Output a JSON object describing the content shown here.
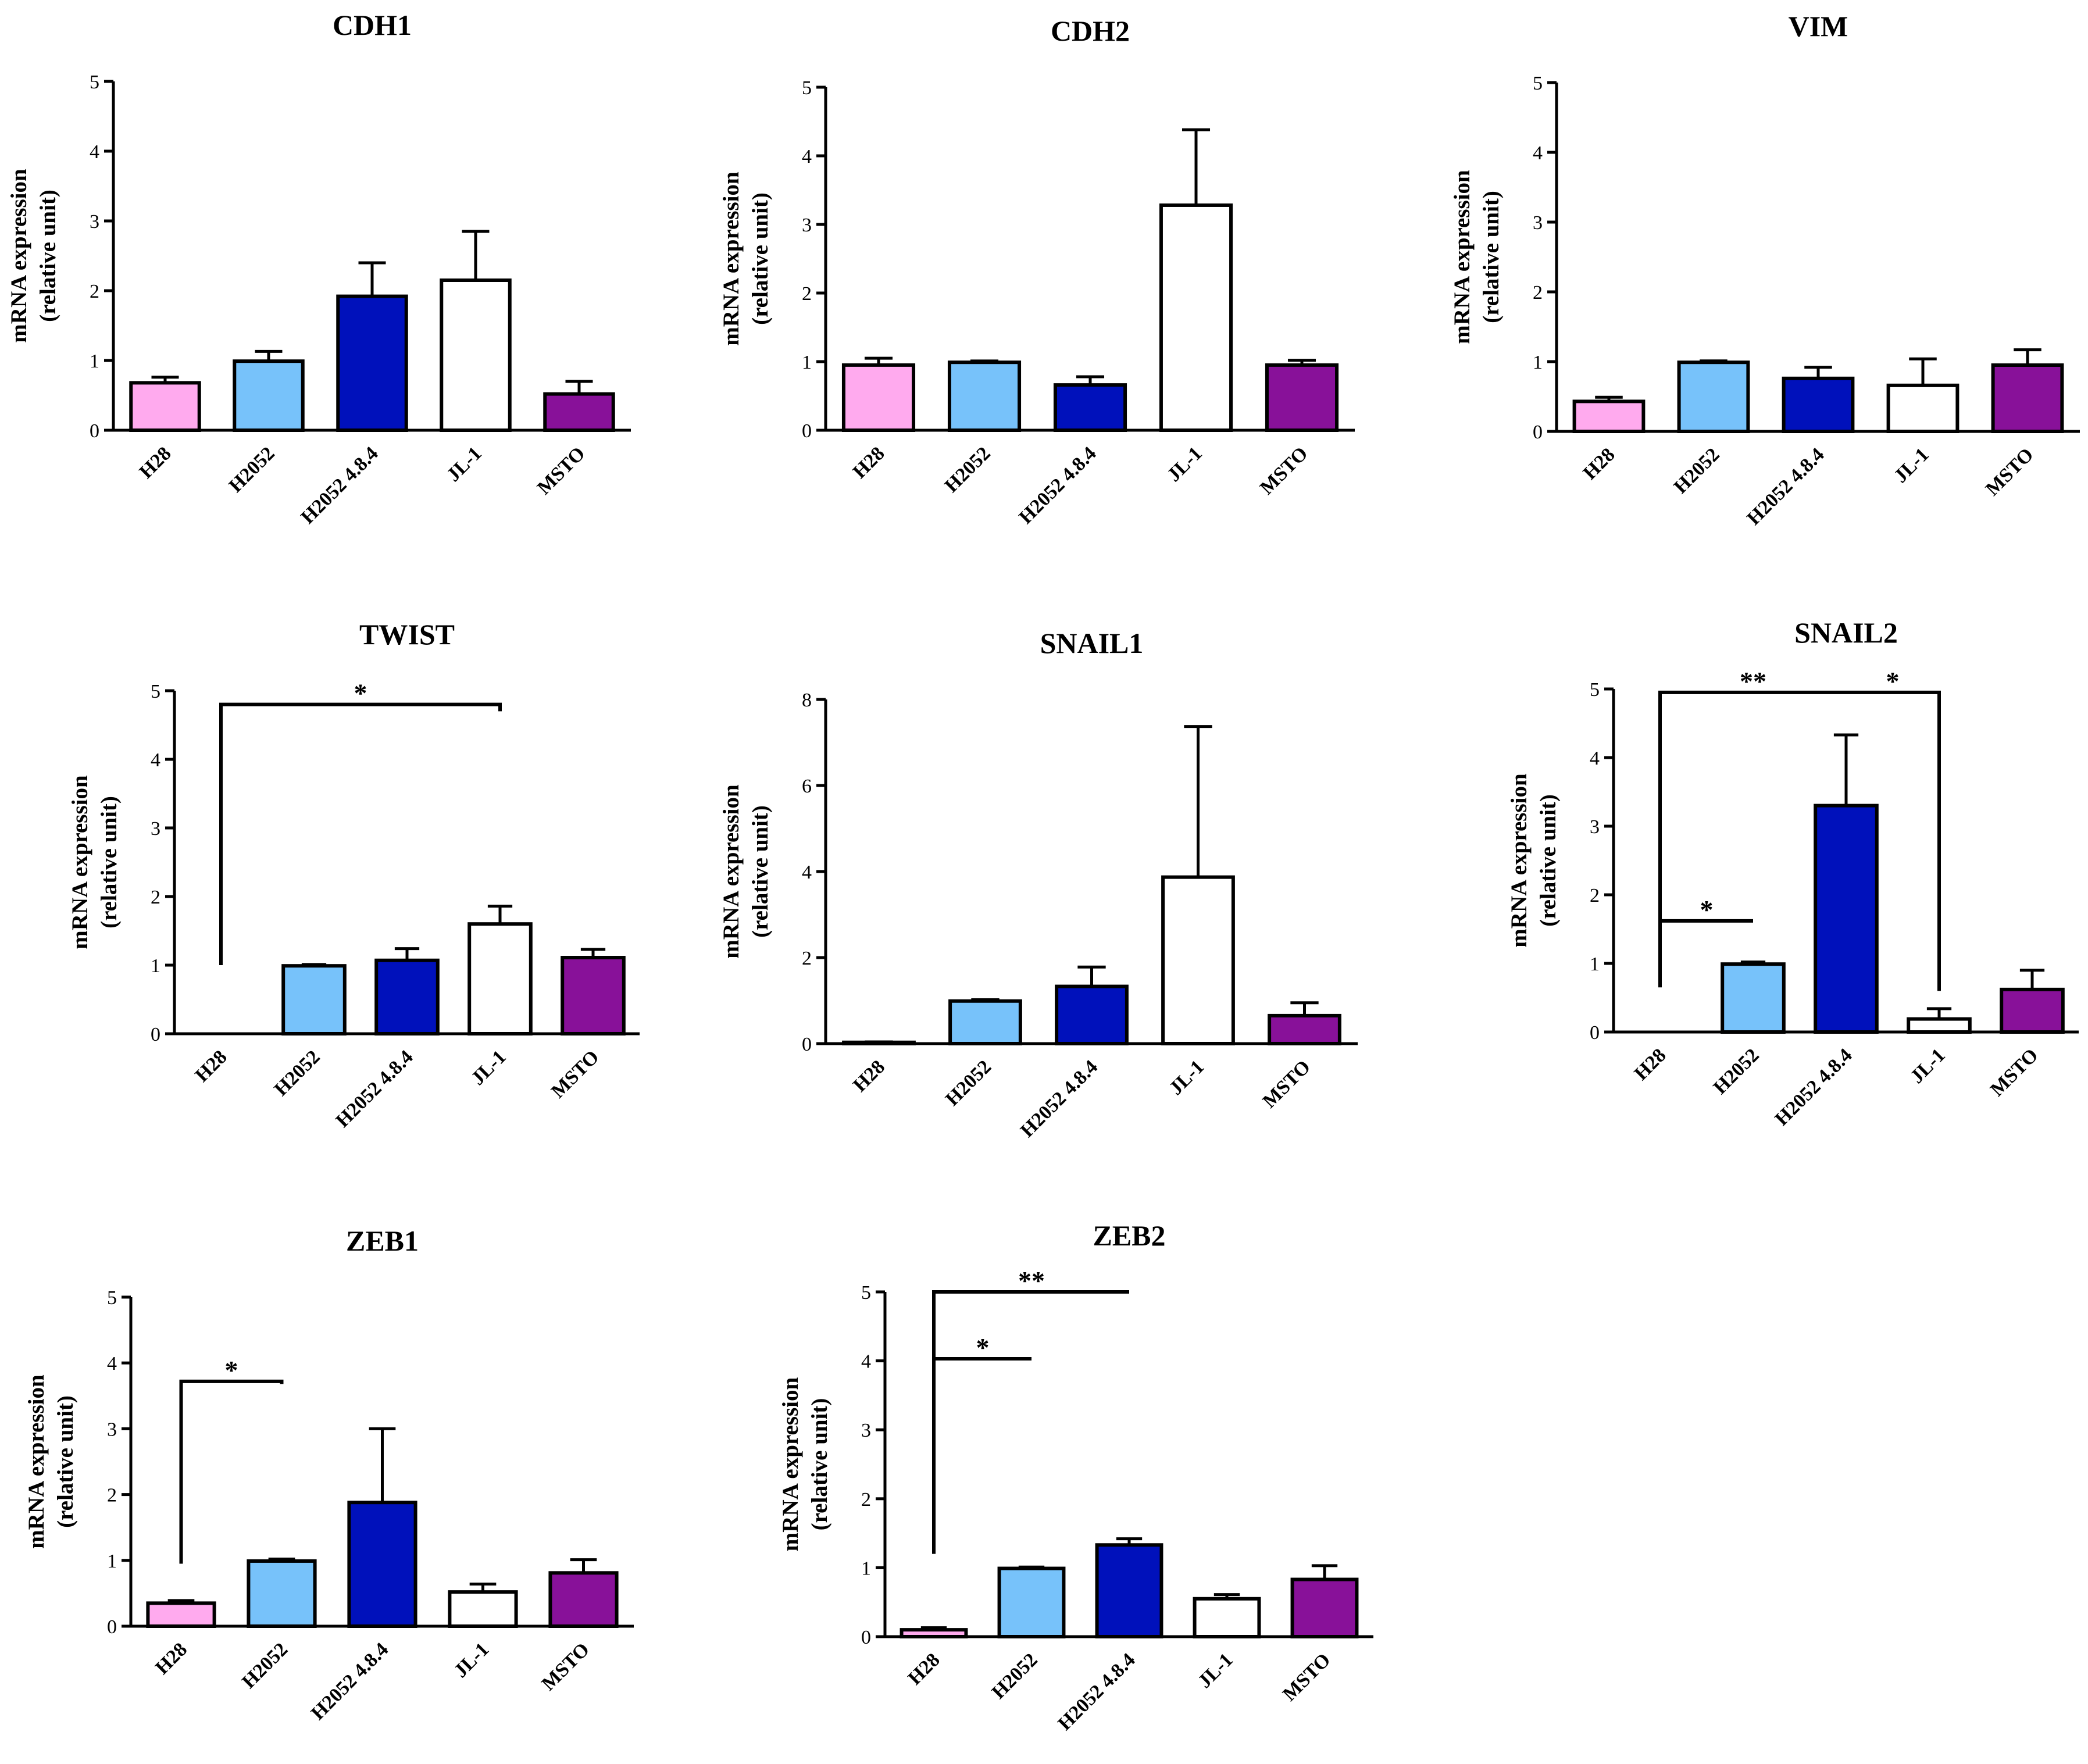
{
  "colors": {
    "H28": "#ffaaee",
    "H2052": "#77c2fa",
    "H2052 4.8.4": "#0011bb",
    "JL-1": "#ffffff",
    "MSTO": "#881199",
    "axis": "#000000"
  },
  "chart_data": [
    {
      "type": "bar",
      "title": "CDH1",
      "ylabel_line1": "mRNA expression",
      "ylabel_line2": "(relative unit)",
      "categories": [
        "H28",
        "H2052",
        "H2052 4.8.4",
        "JL-1",
        "MSTO"
      ],
      "values": [
        0.68,
        0.99,
        1.92,
        2.15,
        0.52
      ],
      "errors": [
        0.08,
        0.14,
        0.48,
        0.7,
        0.18
      ],
      "ylim": [
        0,
        5
      ],
      "yticks": [
        "0",
        "1",
        "2",
        "3",
        "4",
        "5"
      ],
      "significance": []
    },
    {
      "type": "bar",
      "title": "CDH2",
      "ylabel_line1": "mRNA expression",
      "ylabel_line2": "(relative unit)",
      "categories": [
        "H28",
        "H2052",
        "H2052 4.8.4",
        "JL-1",
        "MSTO"
      ],
      "values": [
        0.95,
        0.99,
        0.66,
        3.28,
        0.95
      ],
      "errors": [
        0.1,
        0.02,
        0.12,
        1.1,
        0.07
      ],
      "ylim": [
        0,
        5
      ],
      "yticks": [
        "0",
        "1",
        "2",
        "3",
        "4",
        "5"
      ],
      "significance": []
    },
    {
      "type": "bar",
      "title": "VIM",
      "ylabel_line1": "mRNA expression",
      "ylabel_line2": "(relative unit)",
      "categories": [
        "H28",
        "H2052",
        "H2052 4.8.4",
        "JL-1",
        "MSTO"
      ],
      "values": [
        0.43,
        0.99,
        0.76,
        0.66,
        0.95
      ],
      "errors": [
        0.06,
        0.02,
        0.16,
        0.38,
        0.22
      ],
      "ylim": [
        0,
        5
      ],
      "yticks": [
        "0",
        "1",
        "2",
        "3",
        "4",
        "5"
      ],
      "significance": []
    },
    {
      "type": "bar",
      "title": "TWIST",
      "ylabel_line1": "mRNA expression",
      "ylabel_line2": "(relative unit)",
      "categories": [
        "H28",
        "H2052",
        "H2052 4.8.4",
        "JL-1",
        "MSTO"
      ],
      "values": [
        0.0,
        0.99,
        1.07,
        1.6,
        1.11
      ],
      "errors": [
        0.0,
        0.02,
        0.17,
        0.26,
        0.12
      ],
      "ylim": [
        0,
        5
      ],
      "yticks": [
        "0",
        "1",
        "2",
        "3",
        "4",
        "5"
      ],
      "significance": [
        {
          "from": "H28",
          "to": "JL-1",
          "level": 4.8,
          "left_down_to": 1.0,
          "right_down_to": 4.7,
          "label": "*"
        }
      ]
    },
    {
      "type": "bar",
      "title": "SNAIL1",
      "ylabel_line1": "mRNA expression",
      "ylabel_line2": "(relative unit)",
      "categories": [
        "H28",
        "H2052",
        "H2052 4.8.4",
        "JL-1",
        "MSTO"
      ],
      "values": [
        0.03,
        0.99,
        1.33,
        3.87,
        0.65
      ],
      "errors": [
        0.01,
        0.03,
        0.45,
        3.5,
        0.3
      ],
      "ylim": [
        0,
        8
      ],
      "yticks": [
        "0",
        "2",
        "4",
        "6",
        "8"
      ],
      "significance": []
    },
    {
      "type": "bar",
      "title": "SNAIL2",
      "ylabel_line1": "mRNA expression",
      "ylabel_line2": "(relative unit)",
      "categories": [
        "H28",
        "H2052",
        "H2052 4.8.4",
        "JL-1",
        "MSTO"
      ],
      "values": [
        0.0,
        0.99,
        3.3,
        0.19,
        0.62
      ],
      "errors": [
        0.0,
        0.03,
        1.03,
        0.15,
        0.28
      ],
      "ylim": [
        0,
        5
      ],
      "yticks": [
        "0",
        "1",
        "2",
        "3",
        "4",
        "5"
      ],
      "significance": [
        {
          "from": "H28",
          "to": "H2052",
          "level": 1.62,
          "left_down_to": 0.65,
          "right_down_to": 1.62,
          "label": "*"
        },
        {
          "from": "H28",
          "to": "H2052 4.8.4",
          "level": 4.95,
          "left_down_to": 1.62,
          "right_down_to": 4.95,
          "label": "**"
        },
        {
          "from": "H2052 4.8.4",
          "to": "JL-1",
          "level": 4.95,
          "left_down_to": 4.95,
          "right_down_to": 0.6,
          "label": "*"
        }
      ]
    },
    {
      "type": "bar",
      "title": "ZEB1",
      "ylabel_line1": "mRNA expression",
      "ylabel_line2": "(relative unit)",
      "categories": [
        "H28",
        "H2052",
        "H2052 4.8.4",
        "JL-1",
        "MSTO"
      ],
      "values": [
        0.35,
        0.99,
        1.88,
        0.52,
        0.81
      ],
      "errors": [
        0.04,
        0.03,
        1.12,
        0.12,
        0.2
      ],
      "ylim": [
        0,
        5
      ],
      "yticks": [
        "0",
        "1",
        "2",
        "3",
        "4",
        "5"
      ],
      "significance": [
        {
          "from": "H28",
          "to": "H2052",
          "level": 3.72,
          "left_down_to": 0.95,
          "right_down_to": 3.68,
          "label": "*"
        }
      ]
    },
    {
      "type": "bar",
      "title": "ZEB2",
      "ylabel_line1": "mRNA expression",
      "ylabel_line2": "(relative unit)",
      "categories": [
        "H28",
        "H2052",
        "H2052 4.8.4",
        "JL-1",
        "MSTO"
      ],
      "values": [
        0.1,
        0.99,
        1.33,
        0.55,
        0.83
      ],
      "errors": [
        0.03,
        0.02,
        0.09,
        0.06,
        0.2
      ],
      "ylim": [
        0,
        5
      ],
      "yticks": [
        "0",
        "1",
        "2",
        "3",
        "4",
        "5"
      ],
      "significance": [
        {
          "from": "H28",
          "to": "H2052",
          "level": 4.03,
          "left_down_to": 1.2,
          "right_down_to": 4.03,
          "label": "*"
        },
        {
          "from": "H28",
          "to": "H2052 4.8.4",
          "level": 5.0,
          "left_down_to": 4.03,
          "right_down_to": 5.0,
          "label": "**"
        }
      ]
    }
  ]
}
